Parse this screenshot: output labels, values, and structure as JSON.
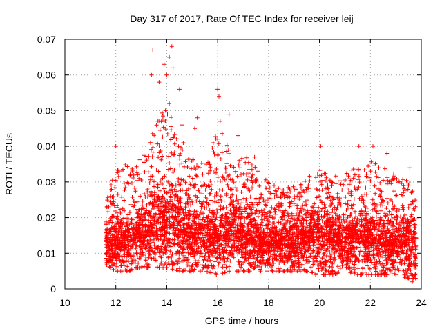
{
  "chart_data": {
    "type": "scatter",
    "title": "Day 317 of 2017, Rate Of TEC Index for receiver leij",
    "xlabel": "GPS time / hours",
    "ylabel": "ROTI / TECUs",
    "xlim": [
      10,
      24
    ],
    "ylim": [
      0,
      0.07
    ],
    "xticks": [
      10,
      12,
      14,
      16,
      18,
      20,
      22,
      24
    ],
    "yticks": [
      0,
      0.01,
      0.02,
      0.03,
      0.04,
      0.05,
      0.06,
      0.07
    ],
    "xtick_labels": [
      "10",
      "12",
      "14",
      "16",
      "18",
      "20",
      "22",
      "24"
    ],
    "ytick_labels": [
      "0",
      "0.01",
      "0.02",
      "0.03",
      "0.04",
      "0.05",
      "0.06",
      "0.07"
    ],
    "grid": true,
    "marker": "+",
    "marker_color": "#ff0000",
    "series": [
      {
        "name": "ROTI",
        "x_range": [
          11.6,
          23.8
        ],
        "baseline_envelope": {
          "x": [
            11.6,
            12.0,
            12.5,
            13.0,
            13.5,
            14.0,
            14.5,
            15.0,
            15.5,
            16.0,
            16.5,
            17.0,
            17.5,
            18.0,
            18.5,
            19.0,
            19.5,
            20.0,
            20.5,
            21.0,
            21.5,
            22.0,
            22.5,
            23.0,
            23.5,
            23.8
          ],
          "median": [
            0.012,
            0.012,
            0.013,
            0.014,
            0.016,
            0.017,
            0.016,
            0.014,
            0.013,
            0.014,
            0.015,
            0.014,
            0.013,
            0.012,
            0.012,
            0.012,
            0.013,
            0.013,
            0.013,
            0.013,
            0.013,
            0.013,
            0.012,
            0.012,
            0.012,
            0.011
          ],
          "upper": [
            0.024,
            0.035,
            0.035,
            0.037,
            0.045,
            0.055,
            0.04,
            0.038,
            0.035,
            0.045,
            0.042,
            0.038,
            0.034,
            0.03,
            0.028,
            0.03,
            0.031,
            0.034,
            0.033,
            0.033,
            0.035,
            0.036,
            0.034,
            0.032,
            0.031,
            0.03
          ],
          "lower": [
            0.007,
            0.005,
            0.005,
            0.006,
            0.006,
            0.006,
            0.005,
            0.005,
            0.005,
            0.004,
            0.005,
            0.005,
            0.005,
            0.005,
            0.005,
            0.005,
            0.005,
            0.004,
            0.004,
            0.005,
            0.004,
            0.004,
            0.004,
            0.004,
            0.003,
            0.003
          ]
        },
        "notable_points": [
          {
            "x": 13.45,
            "y": 0.067
          },
          {
            "x": 14.2,
            "y": 0.068
          },
          {
            "x": 14.1,
            "y": 0.065
          },
          {
            "x": 14.25,
            "y": 0.062
          },
          {
            "x": 13.9,
            "y": 0.063
          },
          {
            "x": 14.0,
            "y": 0.06
          },
          {
            "x": 13.4,
            "y": 0.06
          },
          {
            "x": 13.7,
            "y": 0.058
          },
          {
            "x": 14.5,
            "y": 0.056
          },
          {
            "x": 16.0,
            "y": 0.056
          },
          {
            "x": 16.05,
            "y": 0.054
          },
          {
            "x": 14.1,
            "y": 0.052
          },
          {
            "x": 13.95,
            "y": 0.05
          },
          {
            "x": 16.45,
            "y": 0.049
          },
          {
            "x": 15.2,
            "y": 0.048
          },
          {
            "x": 16.1,
            "y": 0.047
          },
          {
            "x": 13.9,
            "y": 0.047
          },
          {
            "x": 14.6,
            "y": 0.046
          },
          {
            "x": 15.1,
            "y": 0.045
          },
          {
            "x": 16.8,
            "y": 0.043
          },
          {
            "x": 16.0,
            "y": 0.042
          },
          {
            "x": 14.65,
            "y": 0.041
          },
          {
            "x": 12.0,
            "y": 0.04
          },
          {
            "x": 20.05,
            "y": 0.04
          },
          {
            "x": 21.55,
            "y": 0.04
          },
          {
            "x": 22.1,
            "y": 0.04
          },
          {
            "x": 22.65,
            "y": 0.038
          },
          {
            "x": 17.45,
            "y": 0.037
          },
          {
            "x": 23.55,
            "y": 0.034
          },
          {
            "x": 11.65,
            "y": 0.023
          },
          {
            "x": 23.65,
            "y": 0.002
          },
          {
            "x": 15.95,
            "y": 0.004
          },
          {
            "x": 19.85,
            "y": 0.004
          }
        ]
      }
    ]
  }
}
